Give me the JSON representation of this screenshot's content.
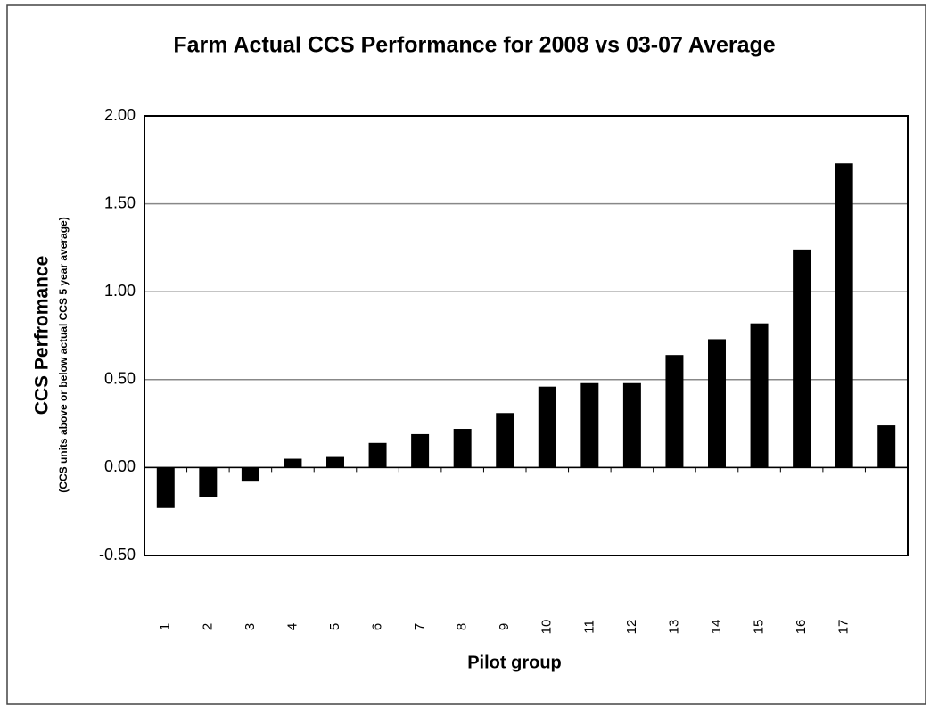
{
  "chart_data": {
    "type": "bar",
    "title": "Farm Actual CCS Performance for 2008 vs 03-07 Average",
    "y_label": "CCS Perfromance",
    "y_sublabel": "(CCS units above or below actual CCS 5 year average)",
    "x_label": "Pilot group",
    "categories": [
      "1",
      "2",
      "3",
      "4",
      "5",
      "6",
      "7",
      "8",
      "9",
      "10",
      "11",
      "12",
      "13",
      "14",
      "15",
      "16",
      "17",
      null
    ],
    "values": [
      -0.23,
      -0.17,
      -0.08,
      0.05,
      0.06,
      0.14,
      0.19,
      0.22,
      0.31,
      0.46,
      0.48,
      0.48,
      0.64,
      0.73,
      0.82,
      1.24,
      1.73,
      0.24
    ],
    "color": "#000000",
    "ylim": [
      -0.5,
      2.0
    ],
    "yticks": [
      {
        "value": -0.5,
        "label": "-0.50"
      },
      {
        "value": 0,
        "label": "0.00"
      },
      {
        "value": 0.5,
        "label": "0.50"
      },
      {
        "value": 1.0,
        "label": "1.00"
      },
      {
        "value": 1.5,
        "label": "1.50"
      },
      {
        "value": 2.0,
        "label": "2.00"
      }
    ],
    "grid": true
  }
}
